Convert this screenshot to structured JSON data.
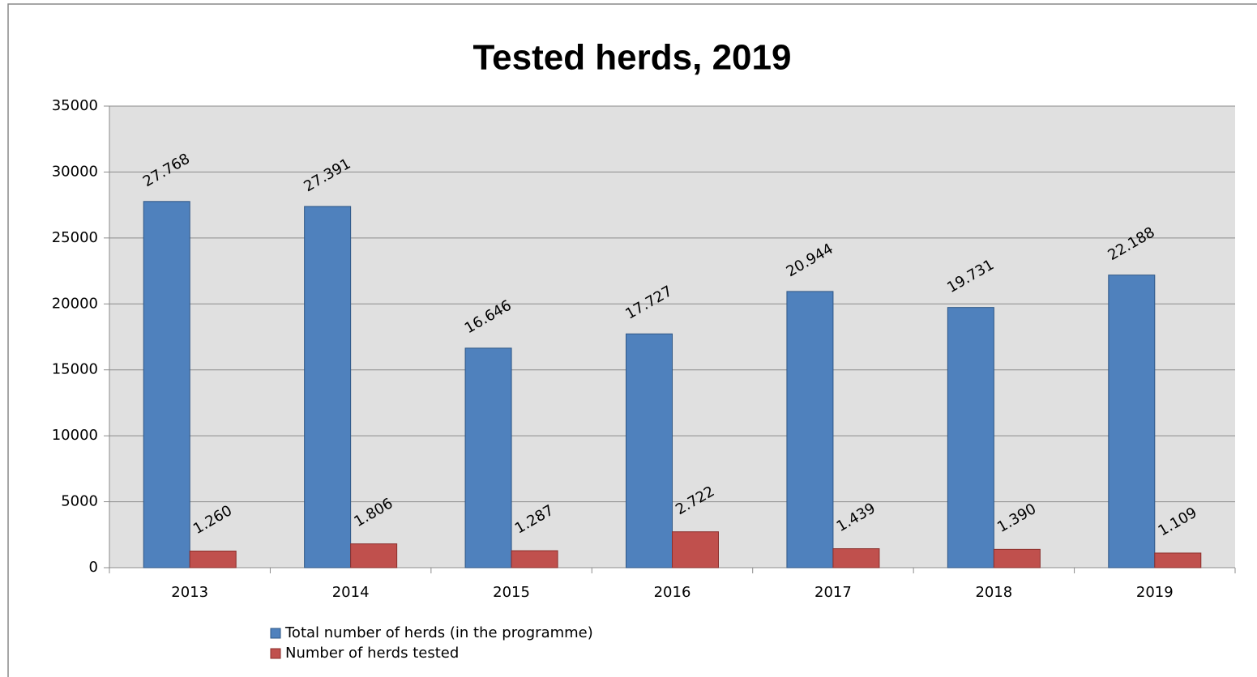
{
  "chart_data": {
    "type": "bar",
    "title": "Tested herds, 2019",
    "categories": [
      "2013",
      "2014",
      "2015",
      "2016",
      "2017",
      "2018",
      "2019"
    ],
    "series": [
      {
        "name": "Total number of herds (in the programme)",
        "color": "#4f81bd",
        "values": [
          27768,
          27391,
          16646,
          17727,
          20944,
          19731,
          22188
        ],
        "value_labels": [
          "27.768",
          "27.391",
          "16.646",
          "17.727",
          "20.944",
          "19.731",
          "22.188"
        ]
      },
      {
        "name": "Number of herds tested",
        "color": "#c0504d",
        "values": [
          1260,
          1806,
          1287,
          2722,
          1439,
          1390,
          1109
        ],
        "value_labels": [
          "1.260",
          "1.806",
          "1.287",
          "2.722",
          "1.439",
          "1.390",
          "1.109"
        ]
      }
    ],
    "ylim": [
      0,
      35000
    ],
    "yticks": [
      0,
      5000,
      10000,
      15000,
      20000,
      25000,
      30000,
      35000
    ],
    "grid": true
  }
}
